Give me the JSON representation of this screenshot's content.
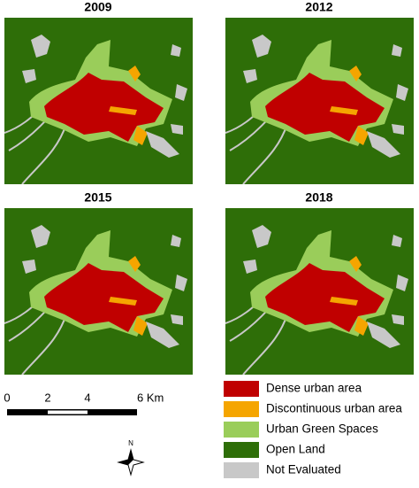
{
  "panels": [
    {
      "title": "2009"
    },
    {
      "title": "2012"
    },
    {
      "title": "2015"
    },
    {
      "title": "2018"
    }
  ],
  "scale_bar": {
    "labels": [
      "0",
      "2",
      "4",
      "6 Km"
    ]
  },
  "legend": {
    "items": [
      {
        "label": "Dense urban area",
        "color": "#c00000"
      },
      {
        "label": "Discontinuous urban area",
        "color": "#f5a500"
      },
      {
        "label": "Urban Green Spaces",
        "color": "#9acd5a"
      },
      {
        "label": "Open Land",
        "color": "#2e6e08"
      },
      {
        "label": "Not Evaluated",
        "color": "#c8c8c8"
      }
    ]
  },
  "north_arrow": {
    "label": "N"
  }
}
